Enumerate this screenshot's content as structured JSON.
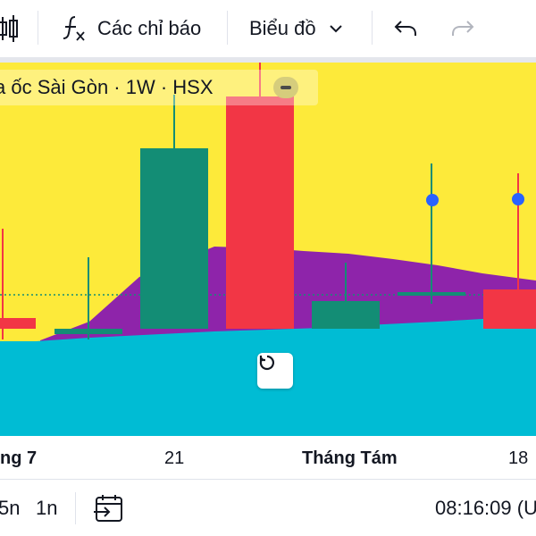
{
  "toolbar": {
    "indicators_label": "Các chỉ báo",
    "chart_type_label": "Biểu đồ"
  },
  "legend": {
    "title": "a ốc Sài Gòn · 1W · HSX"
  },
  "colors": {
    "background": "#fdea3a",
    "area_purple": "#8e24aa",
    "area_cyan": "#00bcd4",
    "up": "#138d75",
    "down": "#f23645",
    "marker": "#2962ff"
  },
  "time_axis": {
    "ticks": [
      {
        "label": "ng 7",
        "bold": true
      },
      {
        "label": "21",
        "bold": false
      },
      {
        "label": "Tháng Tám",
        "bold": true
      },
      {
        "label": "18",
        "bold": false
      }
    ]
  },
  "bottom_bar": {
    "range_5": "5n",
    "range_1": "1n",
    "clock": "08:16:09 (U"
  },
  "icons": {
    "toolbar": [
      "candles-icon",
      "function-fx-icon",
      "chevron-down-icon",
      "undo-icon",
      "redo-icon"
    ],
    "chart": [
      "collapse-legend-icon",
      "reset-chart-icon"
    ],
    "bottom": [
      "go-to-date-icon"
    ]
  }
}
